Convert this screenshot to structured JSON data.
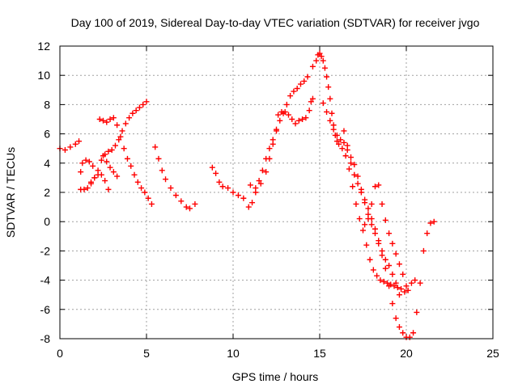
{
  "chart_data": {
    "type": "scatter",
    "title": "Day 100 of 2019, Sidereal Day-to-day VTEC variation (SDTVAR) for receiver jvgo",
    "xlabel": "GPS time / hours",
    "ylabel": "SDTVAR / TECUs",
    "xlim": [
      0,
      25
    ],
    "ylim": [
      -8,
      12
    ],
    "xticks": [
      0,
      5,
      10,
      15,
      20,
      25
    ],
    "yticks": [
      -8,
      -6,
      -4,
      -2,
      0,
      2,
      4,
      6,
      8,
      10,
      12
    ],
    "grid": true,
    "marker": "+",
    "series_color": "#ff0000",
    "series": [
      {
        "x": [
          0.0,
          0.3,
          0.6,
          0.9,
          1.1
        ],
        "y": [
          5.0,
          4.9,
          5.1,
          5.3,
          5.5
        ]
      },
      {
        "x": [
          1.2,
          1.3,
          1.5,
          1.7,
          1.9
        ],
        "y": [
          3.4,
          4.0,
          4.2,
          4.1,
          3.8
        ]
      },
      {
        "x": [
          1.2,
          1.4,
          1.6,
          1.8,
          2.0,
          2.2,
          2.4,
          2.6,
          2.8,
          3.0,
          3.2,
          3.4,
          3.6,
          3.8,
          4.0,
          4.2,
          4.4,
          4.6,
          4.8,
          5.0
        ],
        "y": [
          2.2,
          2.2,
          2.3,
          2.6,
          3.0,
          3.5,
          4.2,
          4.6,
          4.8,
          4.9,
          5.2,
          5.6,
          6.2,
          6.7,
          7.1,
          7.4,
          7.6,
          7.8,
          8.0,
          8.2
        ]
      },
      {
        "x": [
          1.8,
          2.0,
          2.2,
          2.4,
          2.6,
          2.8
        ],
        "y": [
          2.7,
          3.0,
          3.2,
          3.2,
          2.8,
          2.2
        ]
      },
      {
        "x": [
          2.3,
          2.5,
          2.7,
          2.9,
          3.1,
          3.3,
          3.5,
          3.7,
          3.9,
          4.1,
          4.3,
          4.5,
          4.7,
          4.9,
          5.1,
          5.3
        ],
        "y": [
          7.0,
          6.9,
          6.8,
          7.0,
          7.1,
          6.6,
          5.8,
          5.0,
          4.3,
          3.8,
          3.2,
          2.7,
          2.3,
          2.0,
          1.6,
          1.2
        ]
      },
      {
        "x": [
          2.5,
          2.7,
          2.9,
          3.1,
          3.3
        ],
        "y": [
          4.5,
          4.1,
          3.7,
          3.4,
          3.1
        ]
      },
      {
        "x": [
          5.5,
          5.7,
          5.9,
          6.1,
          6.4,
          6.7,
          7.0,
          7.3,
          7.5,
          7.8
        ],
        "y": [
          5.1,
          4.3,
          3.5,
          2.9,
          2.3,
          1.8,
          1.4,
          1.0,
          0.9,
          1.2
        ]
      },
      {
        "x": [
          8.8,
          9.0,
          9.2,
          9.4,
          9.7,
          10.0,
          10.3,
          10.6,
          10.9,
          11.1,
          11.3,
          11.5,
          11.7,
          11.9,
          12.1,
          12.3,
          12.5,
          12.7,
          12.9,
          13.1,
          13.3,
          13.5,
          13.7,
          13.9,
          14.1,
          14.3
        ],
        "y": [
          3.7,
          3.3,
          2.7,
          2.4,
          2.3,
          2.0,
          1.8,
          1.6,
          1.0,
          1.3,
          2.0,
          2.8,
          3.5,
          4.3,
          5.0,
          5.6,
          6.2,
          6.9,
          7.4,
          8.0,
          8.6,
          8.9,
          9.1,
          9.4,
          9.6,
          9.9
        ]
      },
      {
        "x": [
          11.0,
          11.3,
          11.6,
          11.9,
          12.1,
          12.3,
          12.5,
          12.6,
          12.8,
          13.0,
          13.2,
          13.4,
          13.6,
          13.8,
          14.0,
          14.2,
          14.4,
          14.5,
          14.6
        ],
        "y": [
          2.5,
          2.3,
          2.6,
          3.4,
          4.3,
          5.3,
          6.3,
          7.3,
          7.5,
          7.5,
          7.3,
          7.0,
          6.7,
          6.9,
          7.0,
          7.1,
          7.6,
          8.2,
          8.4
        ]
      },
      {
        "x": [
          14.6,
          14.8,
          14.9,
          15.0,
          15.1,
          15.2,
          15.3,
          15.4,
          15.5,
          15.6,
          15.7,
          15.8,
          15.9,
          16.0,
          16.1,
          16.3,
          16.5,
          16.7,
          16.9,
          17.1,
          17.3,
          17.5,
          17.7,
          17.9,
          18.1,
          18.3,
          18.5,
          18.7,
          18.9,
          19.1,
          19.3,
          19.5,
          19.7,
          19.9,
          20.1,
          20.3,
          20.5
        ],
        "y": [
          10.6,
          11.0,
          11.4,
          11.5,
          11.3,
          11.0,
          10.5,
          9.9,
          9.2,
          8.4,
          7.4,
          6.6,
          5.9,
          5.5,
          5.3,
          5.0,
          4.5,
          3.6,
          2.4,
          1.2,
          0.2,
          -0.6,
          -1.6,
          -2.6,
          -3.3,
          -3.7,
          -4.0,
          -4.1,
          -4.2,
          -4.3,
          -4.4,
          -4.5,
          -4.6,
          -4.8,
          -4.7,
          -4.2,
          -4.0
        ]
      },
      {
        "x": [
          15.2,
          15.4,
          15.6,
          15.8,
          16.0,
          16.2,
          16.4,
          16.6,
          16.8,
          17.0,
          17.2,
          17.4,
          17.6,
          17.8,
          18.0,
          18.2,
          18.4,
          18.6,
          18.8,
          19.0,
          19.2,
          19.4,
          19.6,
          19.8,
          20.0,
          20.2,
          20.4,
          20.6,
          20.8,
          21.0,
          21.2,
          21.4,
          21.6
        ],
        "y": [
          8.1,
          7.5,
          6.9,
          6.3,
          5.9,
          5.6,
          5.4,
          4.9,
          4.0,
          3.2,
          2.6,
          2.0,
          1.3,
          0.5,
          -0.2,
          -0.8,
          -1.5,
          -2.3,
          -3.2,
          -4.4,
          -5.6,
          -6.6,
          -7.2,
          -7.6,
          -7.9,
          -7.9,
          -7.6,
          -6.2,
          -4.2,
          -2.0,
          -0.8,
          -0.1,
          0.0
        ]
      },
      {
        "x": [
          16.4,
          16.6,
          16.8,
          17.0,
          17.2,
          17.4,
          17.6,
          17.8,
          18.0,
          18.2,
          18.4,
          18.6,
          18.8,
          19.0,
          19.2,
          19.4,
          19.6
        ],
        "y": [
          6.2,
          5.2,
          4.4,
          3.9,
          3.1,
          2.2,
          1.5,
          0.9,
          0.2,
          -0.5,
          -1.3,
          -2.0,
          -2.6,
          -3.0,
          -3.6,
          -4.2,
          -5.0
        ]
      },
      {
        "x": [
          17.6,
          17.8,
          18.0,
          18.2,
          18.4,
          18.6,
          18.8,
          19.0,
          19.2,
          19.4,
          19.6,
          19.8,
          20.0
        ],
        "y": [
          -0.2,
          0.2,
          1.2,
          2.4,
          2.5,
          1.2,
          0.1,
          -0.8,
          -1.5,
          -2.2,
          -2.9,
          -3.6,
          -4.4
        ]
      }
    ]
  }
}
